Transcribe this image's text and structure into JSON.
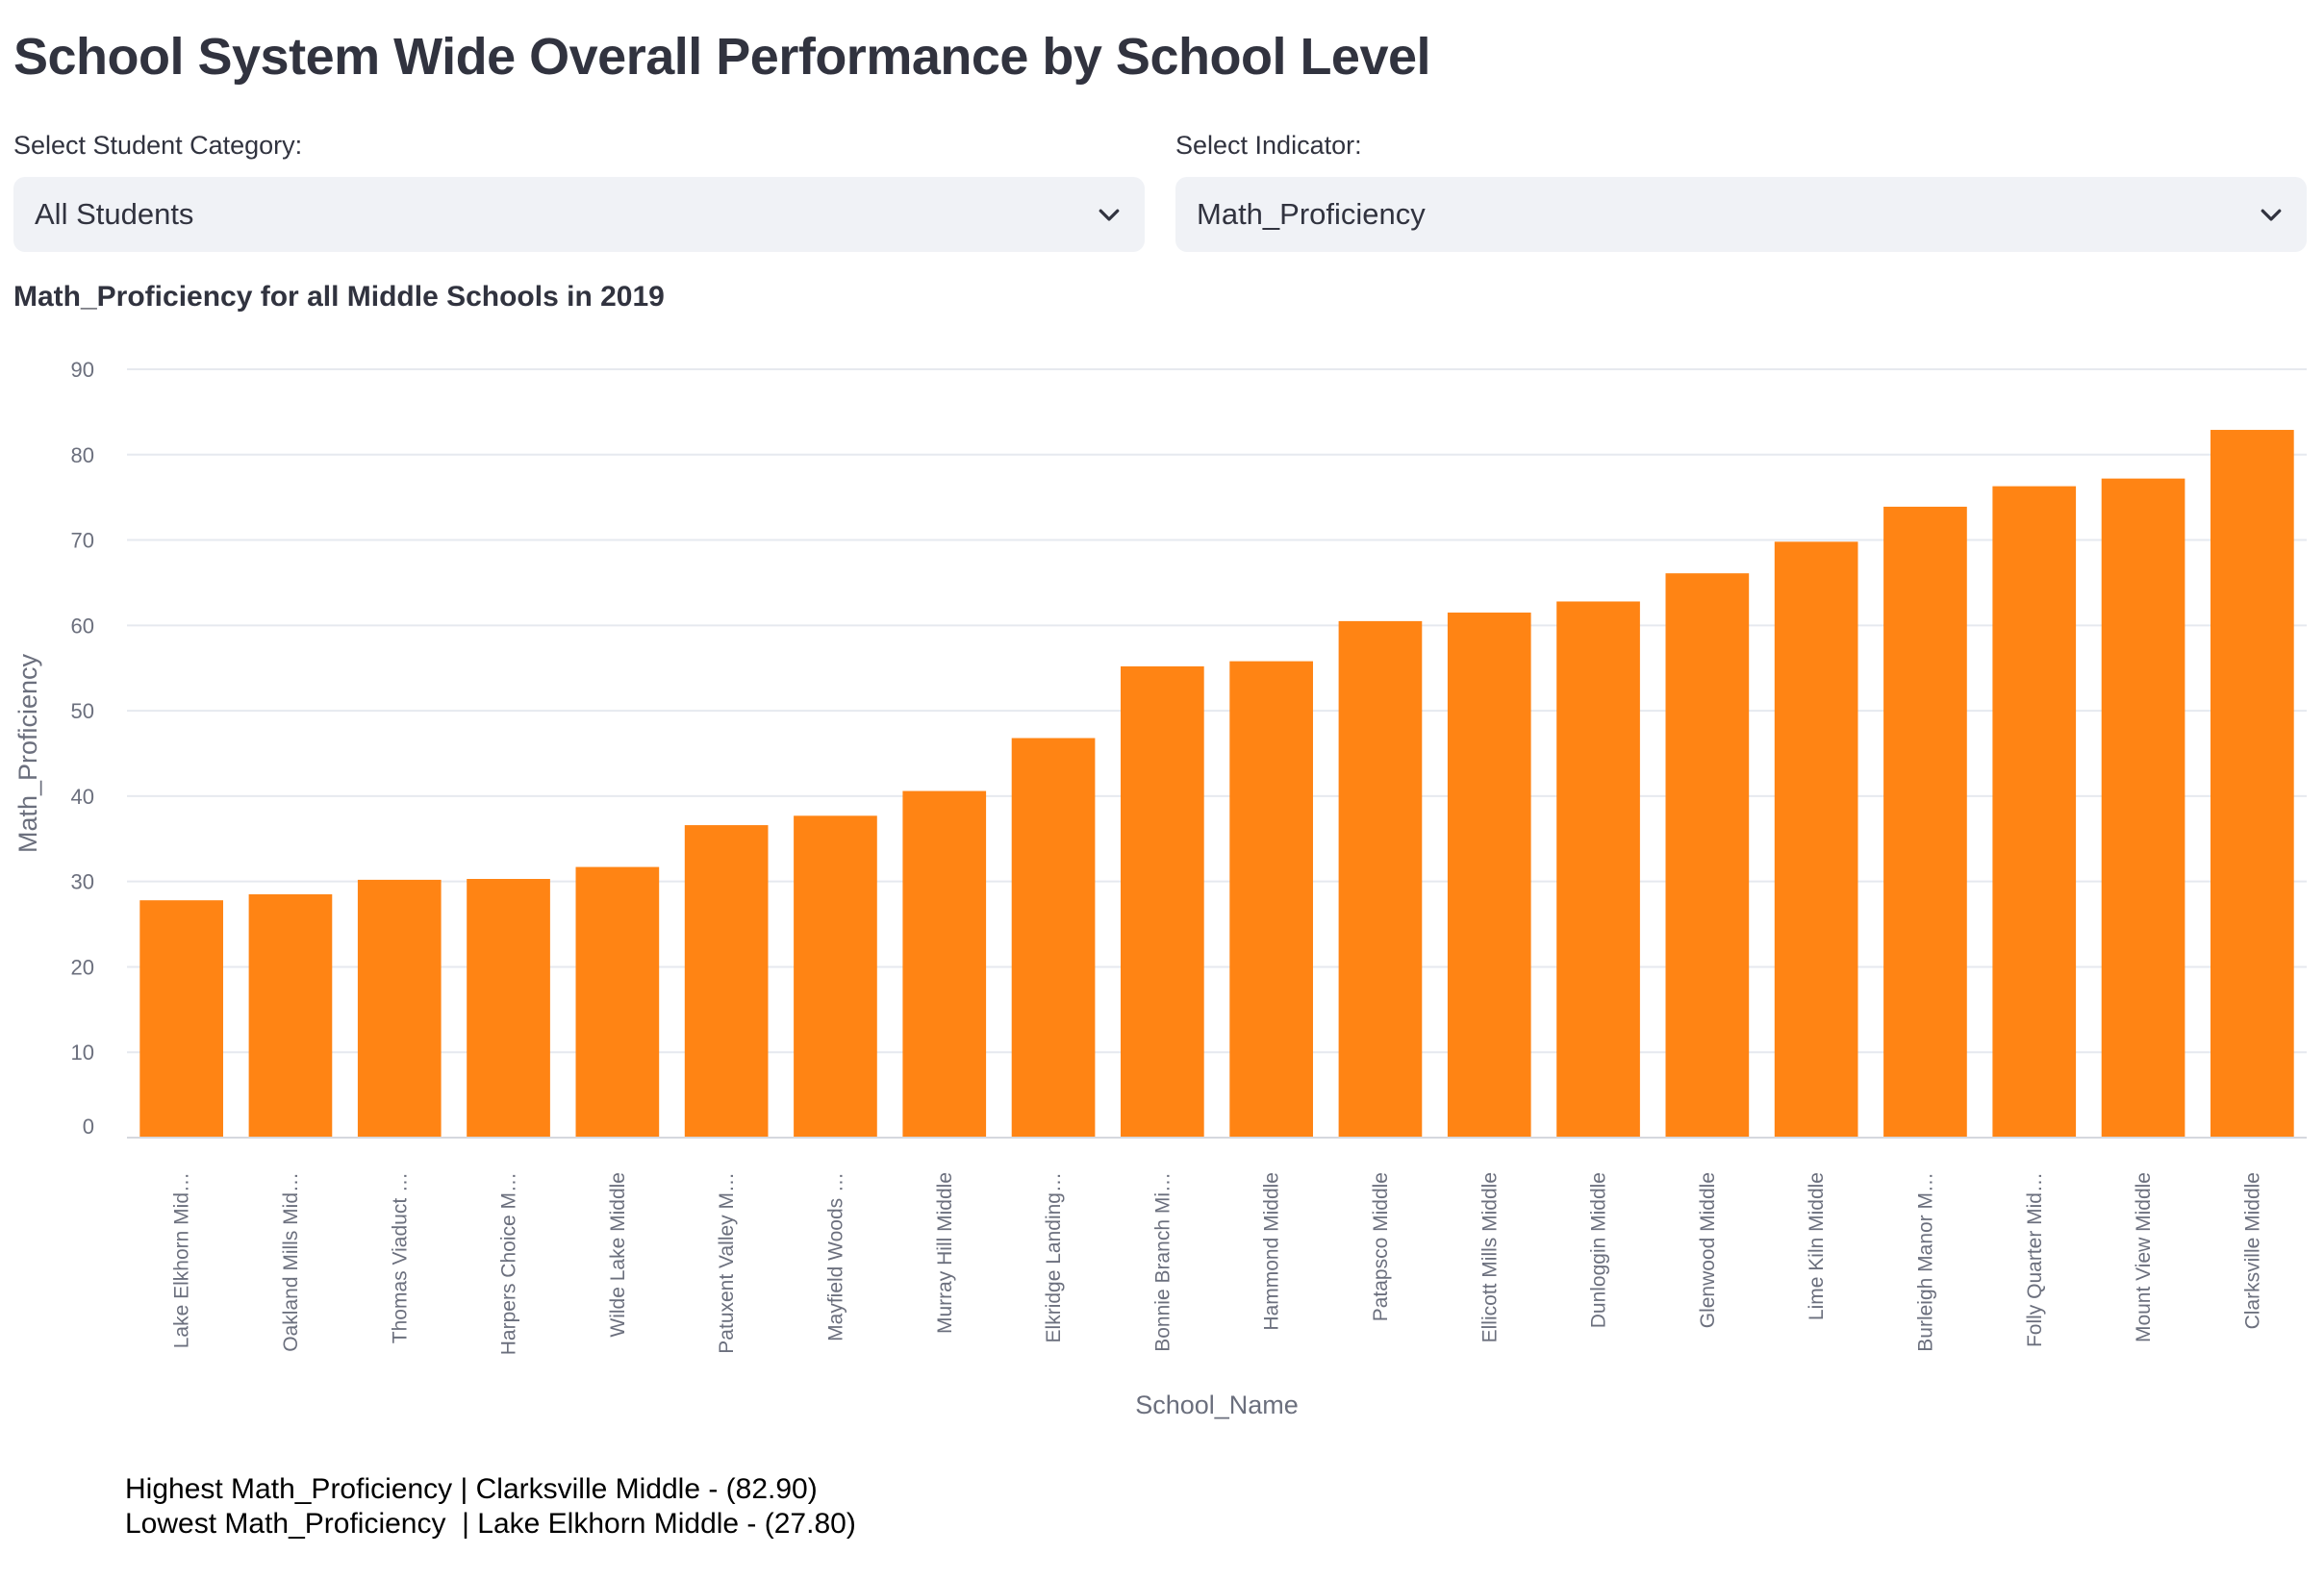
{
  "page": {
    "title": "School System Wide Overall Performance by School Level"
  },
  "filters": {
    "category_label": "Select Student Category:",
    "category_value": "All Students",
    "indicator_label": "Select Indicator:",
    "indicator_value": "Math_Proficiency",
    "dropdown_icon": "chevron-down-icon"
  },
  "chart_title": "Math_Proficiency for all Middle Schools in 2019",
  "chart_data": {
    "type": "bar",
    "xlabel": "School_Name",
    "ylabel": "Math_Proficiency",
    "ylim": [
      0,
      90
    ],
    "yticks": [
      0,
      10,
      20,
      30,
      40,
      50,
      60,
      70,
      80,
      90
    ],
    "grid": true,
    "bar_color": "#ff8414",
    "categories": [
      "Lake Elkhorn Mid…",
      "Oakland Mills Mid…",
      "Thomas Viaduct …",
      "Harpers Choice M…",
      "Wilde Lake Middle",
      "Patuxent Valley M…",
      "Mayfield Woods …",
      "Murray Hill Middle",
      "Elkridge Landing…",
      "Bonnie Branch Mi…",
      "Hammond Middle",
      "Patapsco Middle",
      "Ellicott Mills Middle",
      "Dunloggin Middle",
      "Glenwood Middle",
      "Lime Kiln Middle",
      "Burleigh Manor M…",
      "Folly Quarter Mid…",
      "Mount View Middle",
      "Clarksville Middle"
    ],
    "values": [
      27.8,
      28.5,
      30.2,
      30.3,
      31.7,
      36.6,
      37.7,
      40.6,
      46.8,
      55.2,
      55.8,
      60.5,
      61.5,
      62.8,
      66.1,
      69.8,
      73.9,
      76.3,
      77.2,
      82.9
    ]
  },
  "summary": {
    "highest": "Highest Math_Proficiency | Clarksville Middle - (82.90)",
    "lowest": "Lowest Math_Proficiency  | Lake Elkhorn Middle - (27.80)"
  }
}
